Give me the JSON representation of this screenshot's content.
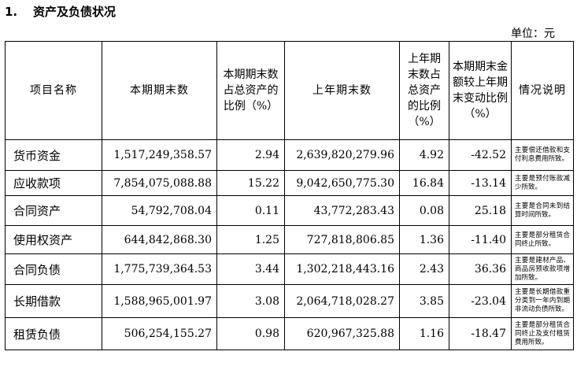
{
  "section": {
    "number": "1.",
    "title": "资产及负债状况"
  },
  "unit": "单位：元",
  "headers": [
    "项目名称",
    "本期期末数",
    "本期期末数占总资产的比例（%）",
    "上年期末数",
    "上年期末数占总资产的比例（%）",
    "本期期末金额较上年期末变动比例（%）",
    "情况说明"
  ],
  "rows": [
    {
      "name": "货币资金",
      "current": "1,517,249,358.57",
      "current_pct": "2.94",
      "prior": "2,639,820,279.96",
      "prior_pct": "4.92",
      "change": "-42.52",
      "note": "主要偿还借款和支付利息费用所致。"
    },
    {
      "name": "应收款项",
      "current": "7,854,075,088.88",
      "current_pct": "15.22",
      "prior": "9,042,650,775.30",
      "prior_pct": "16.84",
      "change": "-13.14",
      "note": "主要是预付账款减少所致。"
    },
    {
      "name": "合同资产",
      "current": "54,792,708.04",
      "current_pct": "0.11",
      "prior": "43,772,283.43",
      "prior_pct": "0.08",
      "change": "25.18",
      "note": "主要是合同未到结算时间所致。"
    },
    {
      "name": "使用权资产",
      "current": "644,842,868.30",
      "current_pct": "1.25",
      "prior": "727,818,806.85",
      "prior_pct": "1.36",
      "change": "-11.40",
      "note": "主要是部分租赁合同终止所致。"
    },
    {
      "name": "合同负债",
      "current": "1,775,739,364.53",
      "current_pct": "3.44",
      "prior": "1,302,218,443.16",
      "prior_pct": "2.43",
      "change": "36.36",
      "note": "主要是建材产品、商品房预收款项增加所致。"
    },
    {
      "name": "长期借款",
      "current": "1,588,965,001.97",
      "current_pct": "3.08",
      "prior": "2,064,718,028.27",
      "prior_pct": "3.85",
      "change": "-23.04",
      "note": "主要是长期借款重分类到一年内到期非流动负债所致。"
    },
    {
      "name": "租赁负债",
      "current": "506,254,155.27",
      "current_pct": "0.98",
      "prior": "620,967,325.88",
      "prior_pct": "1.16",
      "change": "-18.47",
      "note": "主要是部分租赁合同终止及支付租赁费用所致。"
    }
  ]
}
